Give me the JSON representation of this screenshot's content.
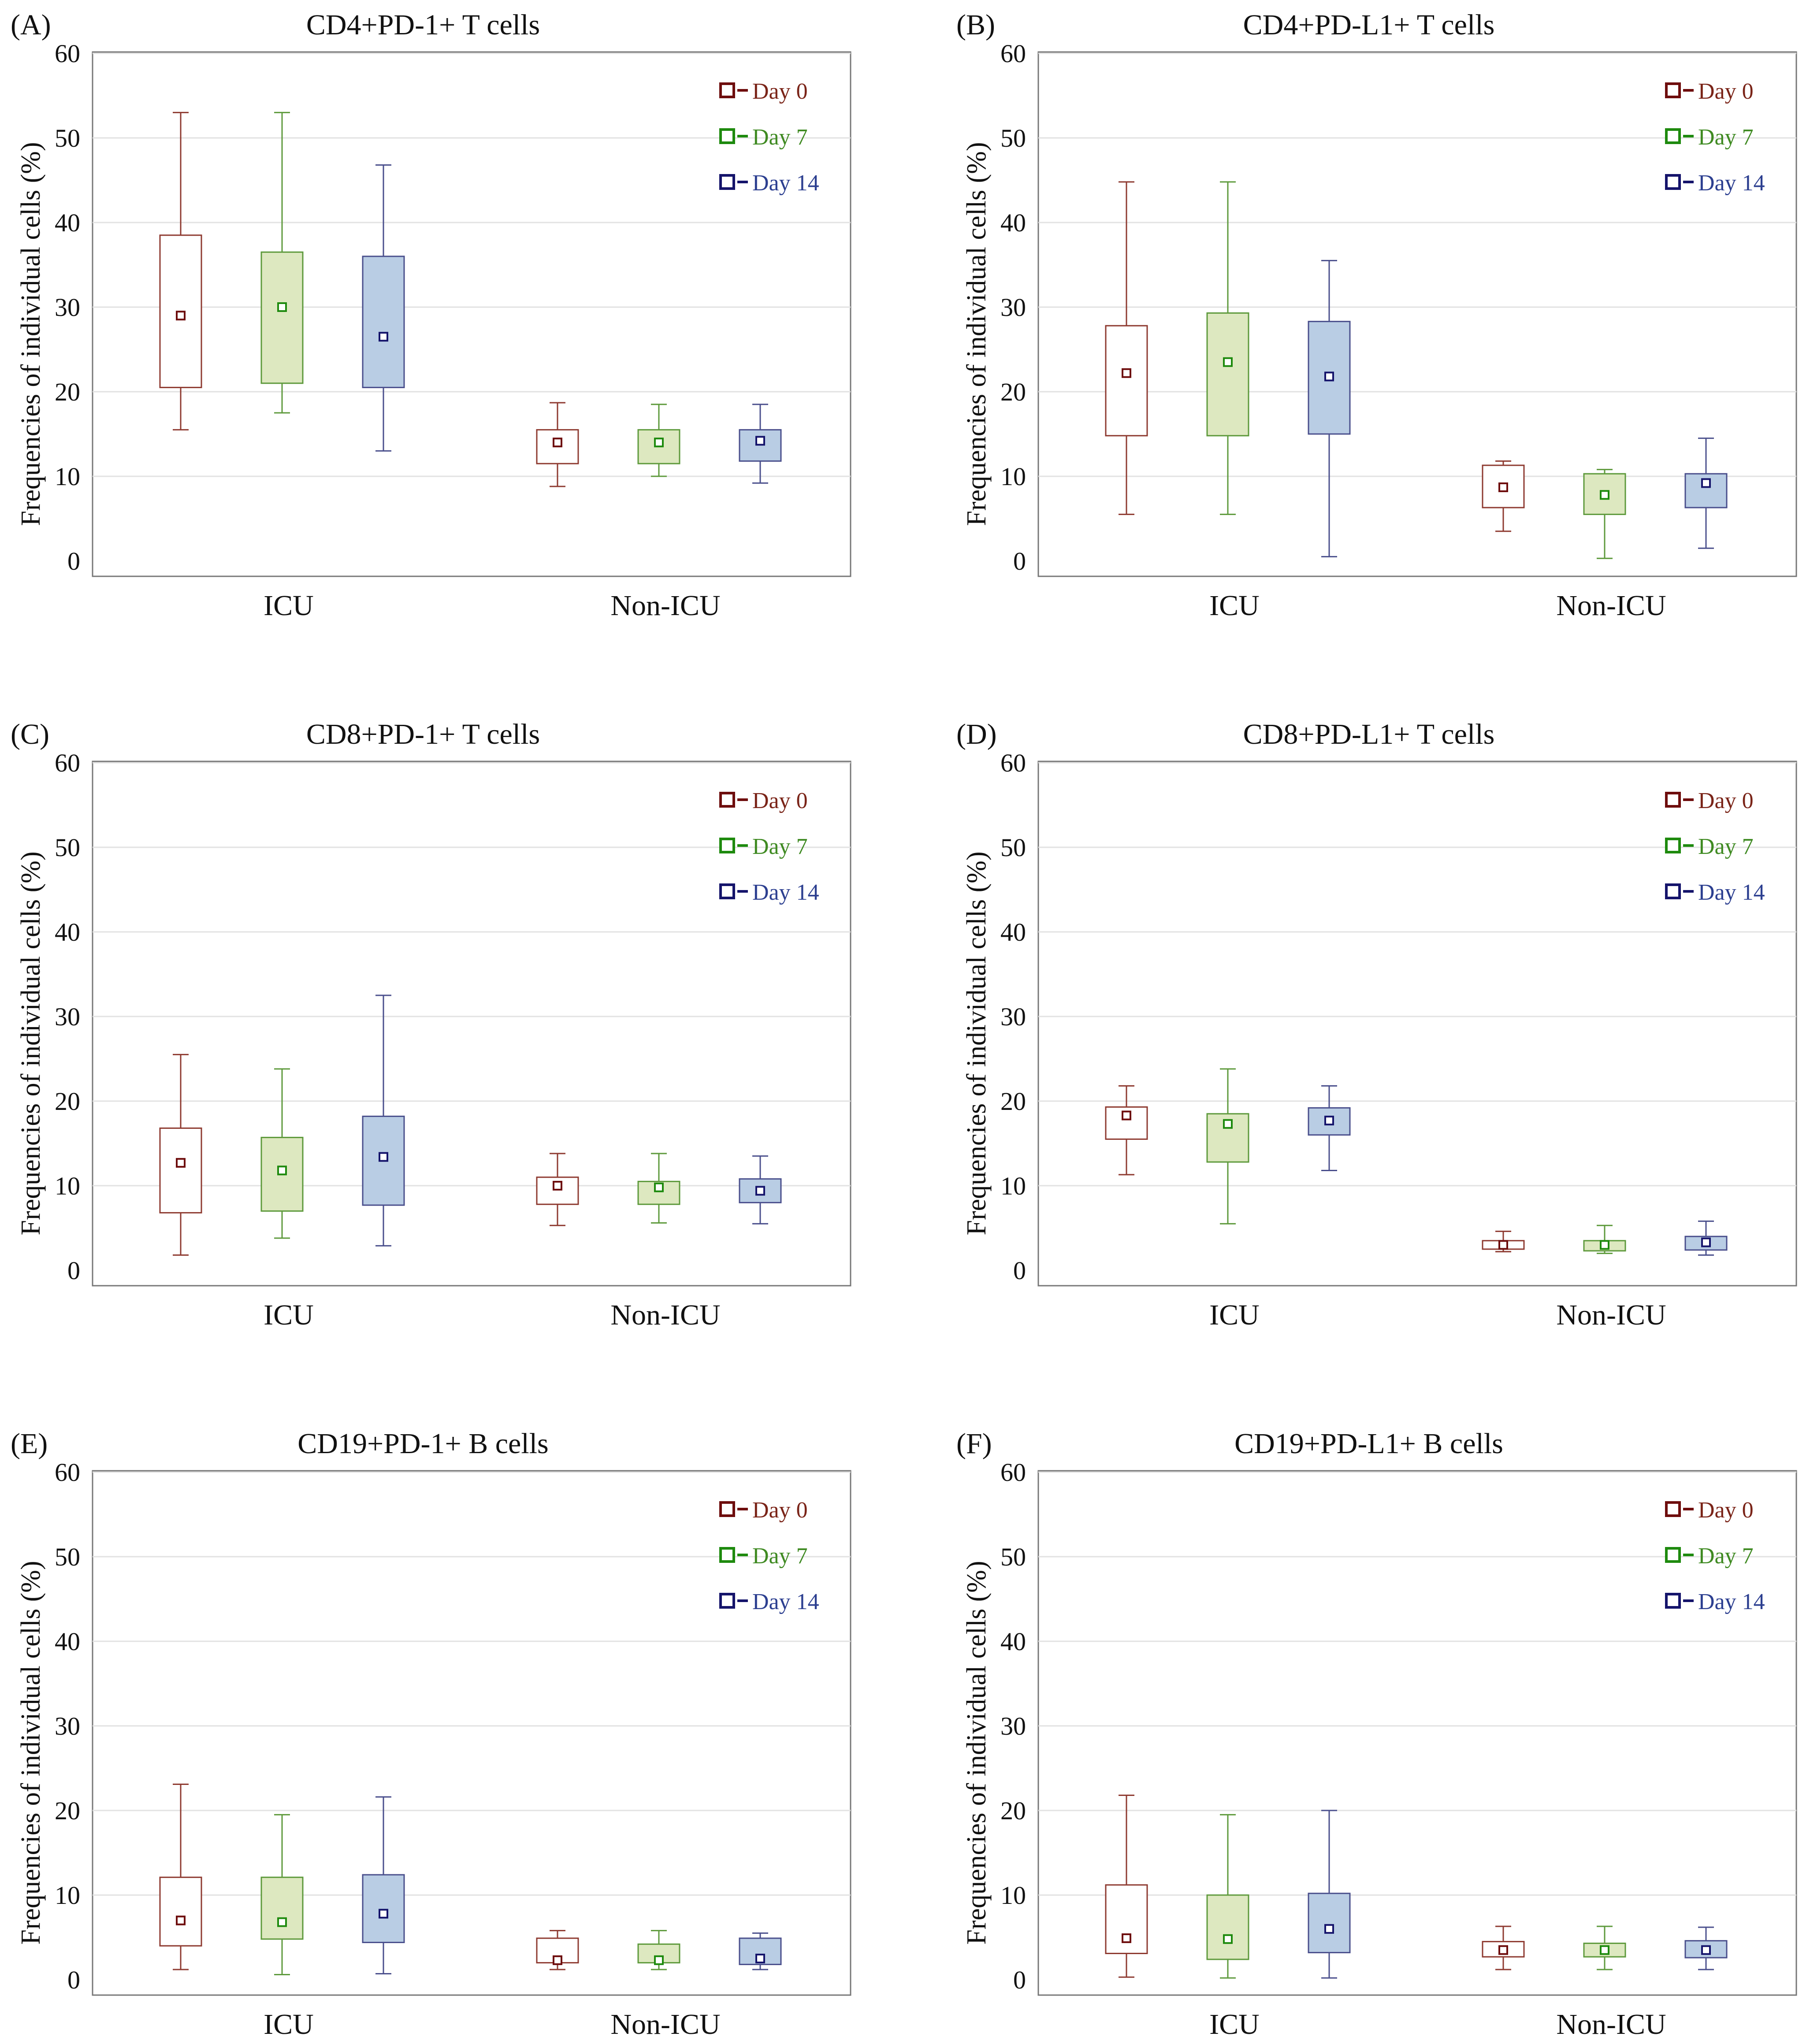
{
  "colors": {
    "day0": {
      "stroke": "#8e3a30",
      "fill": "#ffffff",
      "text": "#7a2418",
      "legend": "#6e0d0d"
    },
    "day7": {
      "stroke": "#5e9a3c",
      "fill": "#dde8c0",
      "text": "#3f8a22",
      "legend": "#1e8a0e"
    },
    "day14": {
      "stroke": "#4a4f8c",
      "fill": "#b9cde4",
      "text": "#2c3f90",
      "legend": "#15146b"
    }
  },
  "chart_data": [
    {
      "type": "box",
      "panel": "(A)",
      "title": "CD4+PD-1+ T cells",
      "ylabel": "Frequencies of individual cells (%)",
      "ylim": [
        0,
        60
      ],
      "yticks": [
        0,
        10,
        20,
        30,
        40,
        50,
        60
      ],
      "categories": [
        "ICU",
        "Non-ICU"
      ],
      "legend": [
        "Day 0",
        "Day 7",
        "Day 14"
      ],
      "series": [
        {
          "name": "Day 0",
          "boxes": [
            {
              "whisker_low": 15.5,
              "q1": 20.5,
              "median": 29,
              "q3": 38.5,
              "whisker_high": 53
            },
            {
              "whisker_low": 8.8,
              "q1": 11.5,
              "median": 14,
              "q3": 15.5,
              "whisker_high": 18.7
            }
          ]
        },
        {
          "name": "Day 7",
          "boxes": [
            {
              "whisker_low": 17.5,
              "q1": 21,
              "median": 30,
              "q3": 36.5,
              "whisker_high": 53
            },
            {
              "whisker_low": 10,
              "q1": 11.5,
              "median": 14,
              "q3": 15.5,
              "whisker_high": 18.5
            }
          ]
        },
        {
          "name": "Day 14",
          "boxes": [
            {
              "whisker_low": 13,
              "q1": 20.5,
              "median": 26.5,
              "q3": 36,
              "whisker_high": 46.8
            },
            {
              "whisker_low": 9.2,
              "q1": 11.8,
              "median": 14.2,
              "q3": 15.5,
              "whisker_high": 18.5
            }
          ]
        }
      ]
    },
    {
      "type": "box",
      "panel": "(B)",
      "title": "CD4+PD-L1+ T cells",
      "ylabel": "Frequencies of individual cells (%)",
      "ylim": [
        0,
        60
      ],
      "yticks": [
        0,
        10,
        20,
        30,
        40,
        50,
        60
      ],
      "categories": [
        "ICU",
        "Non-ICU"
      ],
      "legend": [
        "Day 0",
        "Day 7",
        "Day 14"
      ],
      "series": [
        {
          "name": "Day 0",
          "boxes": [
            {
              "whisker_low": 5.5,
              "q1": 14.8,
              "median": 22.2,
              "q3": 27.8,
              "whisker_high": 44.8
            },
            {
              "whisker_low": 3.5,
              "q1": 6.3,
              "median": 8.7,
              "q3": 11.3,
              "whisker_high": 11.8
            }
          ]
        },
        {
          "name": "Day 7",
          "boxes": [
            {
              "whisker_low": 5.5,
              "q1": 14.8,
              "median": 23.5,
              "q3": 29.3,
              "whisker_high": 44.8
            },
            {
              "whisker_low": 0.3,
              "q1": 5.5,
              "median": 7.8,
              "q3": 10.3,
              "whisker_high": 10.8
            }
          ]
        },
        {
          "name": "Day 14",
          "boxes": [
            {
              "whisker_low": 0.5,
              "q1": 15,
              "median": 21.8,
              "q3": 28.3,
              "whisker_high": 35.5
            },
            {
              "whisker_low": 1.5,
              "q1": 6.3,
              "median": 9.2,
              "q3": 10.3,
              "whisker_high": 14.5
            }
          ]
        }
      ]
    },
    {
      "type": "box",
      "panel": "(C)",
      "title": "CD8+PD-1+ T cells",
      "ylabel": "Frequencies of individual cells (%)",
      "ylim": [
        0,
        60
      ],
      "yticks": [
        0,
        10,
        20,
        30,
        40,
        50,
        60
      ],
      "categories": [
        "ICU",
        "Non-ICU"
      ],
      "legend": [
        "Day 0",
        "Day 7",
        "Day 14"
      ],
      "series": [
        {
          "name": "Day 0",
          "boxes": [
            {
              "whisker_low": 1.8,
              "q1": 6.8,
              "median": 12.7,
              "q3": 16.8,
              "whisker_high": 25.5
            },
            {
              "whisker_low": 5.3,
              "q1": 7.8,
              "median": 10,
              "q3": 11,
              "whisker_high": 13.8
            }
          ]
        },
        {
          "name": "Day 7",
          "boxes": [
            {
              "whisker_low": 3.8,
              "q1": 7,
              "median": 11.8,
              "q3": 15.7,
              "whisker_high": 23.8
            },
            {
              "whisker_low": 5.6,
              "q1": 7.8,
              "median": 9.8,
              "q3": 10.5,
              "whisker_high": 13.8
            }
          ]
        },
        {
          "name": "Day 14",
          "boxes": [
            {
              "whisker_low": 2.9,
              "q1": 7.7,
              "median": 13.4,
              "q3": 18.2,
              "whisker_high": 32.5
            },
            {
              "whisker_low": 5.5,
              "q1": 8,
              "median": 9.4,
              "q3": 10.8,
              "whisker_high": 13.5
            }
          ]
        }
      ]
    },
    {
      "type": "box",
      "panel": "(D)",
      "title": "CD8+PD-L1+ T cells",
      "ylabel": "Frequencies of individual cells (%)",
      "ylim": [
        0,
        60
      ],
      "yticks": [
        0,
        10,
        20,
        30,
        40,
        50,
        60
      ],
      "categories": [
        "ICU",
        "Non-ICU"
      ],
      "legend": [
        "Day 0",
        "Day 7",
        "Day 14"
      ],
      "series": [
        {
          "name": "Day 0",
          "boxes": [
            {
              "whisker_low": 11.3,
              "q1": 15.5,
              "median": 18.3,
              "q3": 19.3,
              "whisker_high": 21.8
            },
            {
              "whisker_low": 2.2,
              "q1": 2.5,
              "median": 3,
              "q3": 3.5,
              "whisker_high": 4.6
            }
          ]
        },
        {
          "name": "Day 7",
          "boxes": [
            {
              "whisker_low": 5.5,
              "q1": 12.8,
              "median": 17.3,
              "q3": 18.5,
              "whisker_high": 23.8
            },
            {
              "whisker_low": 2,
              "q1": 2.3,
              "median": 3,
              "q3": 3.5,
              "whisker_high": 5.3
            }
          ]
        },
        {
          "name": "Day 14",
          "boxes": [
            {
              "whisker_low": 11.8,
              "q1": 16,
              "median": 17.7,
              "q3": 19.2,
              "whisker_high": 21.8
            },
            {
              "whisker_low": 1.8,
              "q1": 2.4,
              "median": 3.3,
              "q3": 4,
              "whisker_high": 5.8
            }
          ]
        }
      ]
    },
    {
      "type": "box",
      "panel": "(E)",
      "title": "CD19+PD-1+ B cells",
      "ylabel": "Frequencies of individual cells (%)",
      "ylim": [
        0,
        60
      ],
      "yticks": [
        0,
        10,
        20,
        30,
        40,
        50,
        60
      ],
      "categories": [
        "ICU",
        "Non-ICU"
      ],
      "legend": [
        "Day 0",
        "Day 7",
        "Day 14"
      ],
      "series": [
        {
          "name": "Day 0",
          "boxes": [
            {
              "whisker_low": 1.2,
              "q1": 4,
              "median": 7,
              "q3": 12.1,
              "whisker_high": 23.1
            },
            {
              "whisker_low": 1.2,
              "q1": 2,
              "median": 2.3,
              "q3": 4.9,
              "whisker_high": 5.8
            }
          ]
        },
        {
          "name": "Day 7",
          "boxes": [
            {
              "whisker_low": 0.6,
              "q1": 4.8,
              "median": 6.8,
              "q3": 12.1,
              "whisker_high": 19.5
            },
            {
              "whisker_low": 1.2,
              "q1": 2,
              "median": 2.3,
              "q3": 4.2,
              "whisker_high": 5.8
            }
          ]
        },
        {
          "name": "Day 14",
          "boxes": [
            {
              "whisker_low": 0.7,
              "q1": 4.4,
              "median": 7.8,
              "q3": 12.4,
              "whisker_high": 21.6
            },
            {
              "whisker_low": 1.2,
              "q1": 1.8,
              "median": 2.5,
              "q3": 4.9,
              "whisker_high": 5.5
            }
          ]
        }
      ]
    },
    {
      "type": "box",
      "panel": "(F)",
      "title": "CD19+PD-L1+ B cells",
      "ylabel": "Frequencies of individual cells (%)",
      "ylim": [
        0,
        60
      ],
      "yticks": [
        0,
        10,
        20,
        30,
        40,
        50,
        60
      ],
      "categories": [
        "ICU",
        "Non-ICU"
      ],
      "legend": [
        "Day 0",
        "Day 7",
        "Day 14"
      ],
      "series": [
        {
          "name": "Day 0",
          "boxes": [
            {
              "whisker_low": 0.3,
              "q1": 3.1,
              "median": 4.9,
              "q3": 11.2,
              "whisker_high": 21.8
            },
            {
              "whisker_low": 1.2,
              "q1": 2.7,
              "median": 3.5,
              "q3": 4.5,
              "whisker_high": 6.3
            }
          ]
        },
        {
          "name": "Day 7",
          "boxes": [
            {
              "whisker_low": 0.2,
              "q1": 2.4,
              "median": 4.8,
              "q3": 10,
              "whisker_high": 19.5
            },
            {
              "whisker_low": 1.2,
              "q1": 2.7,
              "median": 3.5,
              "q3": 4.3,
              "whisker_high": 6.3
            }
          ]
        },
        {
          "name": "Day 14",
          "boxes": [
            {
              "whisker_low": 0.2,
              "q1": 3.2,
              "median": 6,
              "q3": 10.2,
              "whisker_high": 20
            },
            {
              "whisker_low": 1.2,
              "q1": 2.6,
              "median": 3.5,
              "q3": 4.6,
              "whisker_high": 6.2
            }
          ]
        }
      ]
    }
  ]
}
